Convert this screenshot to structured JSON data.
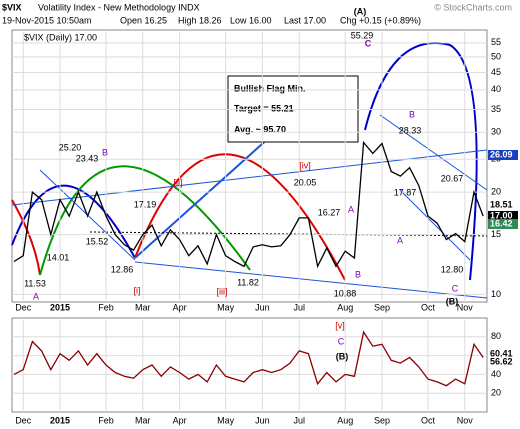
{
  "header": {
    "title": "$VIX",
    "subtitle": "Volatility Index - New Methodology INDX",
    "date": "19-Nov-2015 10:50am",
    "quote": [
      "Open 16.25",
      "High 18.26",
      "Low 16.00",
      "Last 17.00",
      "Chg +0.15 (+0.89%)"
    ],
    "watermark": "© StockCharts.com"
  },
  "info_box": [
    "Bullish Flag Min.",
    "Target = 55.21",
    "Avg. ~ 95.70"
  ],
  "chart_data": [
    {
      "type": "line",
      "legend": "$VIX (Daily) 17.00",
      "color": "#000000",
      "log_scale": true,
      "categories": [
        null,
        "Dec",
        null,
        null,
        null,
        "2015",
        null,
        null,
        null,
        null,
        "Feb",
        null,
        null,
        null,
        "Mar",
        null,
        null,
        null,
        "Apr",
        null,
        null,
        null,
        null,
        "May",
        null,
        null,
        null,
        "Jun",
        null,
        null,
        null,
        "Jul",
        null,
        null,
        null,
        null,
        "Aug",
        null,
        null,
        null,
        "Sep",
        null,
        null,
        null,
        null,
        "Oct",
        null,
        null,
        null,
        "Nov",
        null,
        null
      ],
      "values": [
        12.5,
        13,
        20,
        19,
        15,
        19,
        17,
        20,
        17,
        20,
        17,
        15,
        14,
        13.5,
        15,
        16,
        13.9,
        15.5,
        14.5,
        13,
        13.9,
        12.3,
        15,
        13,
        12.5,
        12.1,
        13.8,
        14,
        13.8,
        13.9,
        15,
        16.8,
        16.8,
        12.1,
        13.7,
        12.1,
        13.4,
        12.8,
        28,
        26,
        27.8,
        23,
        22.3,
        23.6,
        20.9,
        17,
        16.2,
        14.5,
        15.1,
        14.3,
        20,
        17
      ],
      "ylim": [
        9.5,
        60
      ],
      "yticks": [
        10,
        15,
        20,
        25,
        30,
        35,
        40,
        45,
        50,
        55
      ],
      "annotations": [
        "(A)",
        "C",
        "55.29",
        "25.20",
        "23.43",
        "B",
        "[ii]",
        "17.19",
        "15.52",
        "14.01",
        "11.53",
        "A",
        "12.86",
        "[i]",
        "[iii]",
        "11.82",
        "[iv]",
        "20.05",
        "16.27",
        "A",
        "10.88",
        "B",
        "28.33",
        "B",
        "17.87",
        "A",
        "20.67",
        "12.80",
        "C",
        "(B)"
      ],
      "price_labels": [
        "26.09",
        "18.51",
        "17.00",
        "16.42"
      ]
    },
    {
      "type": "line",
      "color": "#8b0000",
      "values": [
        40,
        45,
        75,
        65,
        45,
        62,
        55,
        65,
        50,
        62,
        50,
        42,
        38,
        36,
        45,
        50,
        38,
        48,
        42,
        35,
        40,
        32,
        50,
        38,
        35,
        32,
        42,
        45,
        42,
        45,
        52,
        65,
        62,
        30,
        42,
        32,
        40,
        38,
        85,
        70,
        72,
        55,
        52,
        58,
        48,
        35,
        32,
        28,
        35,
        30,
        72,
        58
      ],
      "ylim": [
        0,
        100
      ],
      "yticks": [
        20,
        40,
        60,
        80
      ],
      "annotations": [
        "[v]",
        "C",
        "(B)"
      ],
      "price_labels": [
        "60.41",
        "56.62"
      ]
    }
  ]
}
